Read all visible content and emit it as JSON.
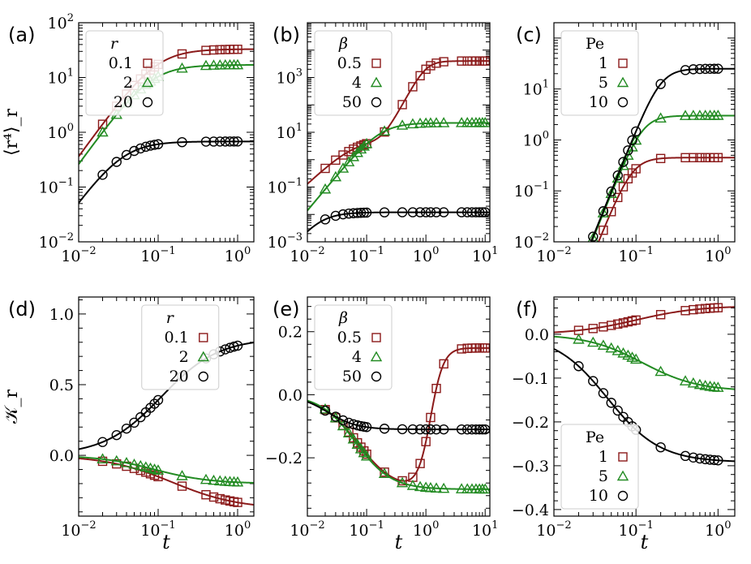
{
  "colors": {
    "red": "#8b1a1a",
    "green": "#228b22",
    "black": "#000000",
    "legend_edge": "#cccccc"
  },
  "chart_data": [
    {
      "panel": "(a)",
      "type": "line",
      "ylabel": "⟨r⁴⟩_r",
      "xlabel": "",
      "xscale": "log",
      "yscale": "log",
      "xlim": [
        0.01,
        1.6
      ],
      "ylim": [
        0.01,
        100
      ],
      "xticks": [
        0.01,
        0.1,
        1
      ],
      "xtick_labels": [
        {
          "b": "10",
          "e": "−2"
        },
        {
          "b": "10",
          "e": "−1"
        },
        {
          "b": "10",
          "e": "0"
        }
      ],
      "yticks": [
        0.01,
        0.1,
        1,
        10,
        100
      ],
      "ytick_labels": [
        {
          "b": "10",
          "e": "−2"
        },
        {
          "b": "10",
          "e": "−1"
        },
        {
          "b": "10",
          "e": "0"
        },
        {
          "b": "10",
          "e": "1"
        },
        {
          "b": "10",
          "e": "2"
        }
      ],
      "legend": {
        "title": "r",
        "title_style": "italic",
        "position": "upper-left",
        "entries": [
          "0.1",
          "2",
          "20"
        ]
      },
      "series": [
        {
          "name": "0.1",
          "color": "red",
          "marker": "square",
          "form": "sat",
          "A": 33,
          "tau": 0.095,
          "n": 2,
          "m": 1.0
        },
        {
          "name": "2",
          "color": "green",
          "marker": "triangle",
          "form": "sat",
          "A": 17,
          "tau": 0.08,
          "n": 2,
          "m": 1.0
        },
        {
          "name": "20",
          "color": "black",
          "marker": "circle",
          "form": "sat",
          "A": 0.68,
          "tau": 0.035,
          "n": 2,
          "m": 1.0
        }
      ]
    },
    {
      "panel": "(b)",
      "type": "line",
      "ylabel": "",
      "xlabel": "",
      "xscale": "log",
      "yscale": "log",
      "xlim": [
        0.01,
        12
      ],
      "ylim": [
        0.001,
        100000
      ],
      "xticks": [
        0.01,
        0.1,
        1,
        10
      ],
      "xtick_labels": [
        {
          "b": "10",
          "e": "−2"
        },
        {
          "b": "10",
          "e": "−1"
        },
        {
          "b": "10",
          "e": "0"
        },
        {
          "b": "10",
          "e": "1"
        }
      ],
      "yticks": [
        0.001,
        0.1,
        10,
        1000
      ],
      "ytick_labels": [
        {
          "b": "10",
          "e": "−3"
        },
        {
          "b": "10",
          "e": "−1"
        },
        {
          "b": "10",
          "e": "1"
        },
        {
          "b": "10",
          "e": "3"
        }
      ],
      "legend": {
        "title": "β",
        "title_style": "italic",
        "position": "upper-left",
        "entries": [
          "0.5",
          "4",
          "50"
        ]
      },
      "series": [
        {
          "name": "0.5",
          "color": "red",
          "marker": "square",
          "form": "sat2",
          "A": 4000,
          "tau": 0.06,
          "n": 2,
          "m": 1.0,
          "tau2": 1.0,
          "n2": 4
        },
        {
          "name": "4",
          "color": "green",
          "marker": "triangle",
          "form": "sat",
          "A": 22,
          "tau": 0.17,
          "n": 2,
          "m": 1.3
        },
        {
          "name": "50",
          "color": "black",
          "marker": "circle",
          "form": "sat",
          "A": 0.012,
          "tau": 0.014,
          "n": 2,
          "m": 1.5
        }
      ]
    },
    {
      "panel": "(c)",
      "type": "line",
      "ylabel": "",
      "xlabel": "",
      "xscale": "log",
      "yscale": "log",
      "xlim": [
        0.01,
        1.6
      ],
      "ylim": [
        0.01,
        200
      ],
      "xticks": [
        0.01,
        0.1,
        1
      ],
      "xtick_labels": [
        {
          "b": "10",
          "e": "−2"
        },
        {
          "b": "10",
          "e": "−1"
        },
        {
          "b": "10",
          "e": "0"
        }
      ],
      "yticks": [
        0.01,
        0.1,
        1,
        10
      ],
      "ytick_labels": [
        {
          "b": "10",
          "e": "−2"
        },
        {
          "b": "10",
          "e": "−1"
        },
        {
          "b": "10",
          "e": "0"
        },
        {
          "b": "10",
          "e": "1"
        }
      ],
      "legend": {
        "title": "Pe",
        "title_style": "normal",
        "position": "upper-left",
        "entries": [
          "1",
          "5",
          "10"
        ]
      },
      "series": [
        {
          "name": "1",
          "color": "red",
          "marker": "square",
          "form": "sat",
          "A": 0.45,
          "tau": 0.09,
          "n": 4,
          "m": 1.0
        },
        {
          "name": "5",
          "color": "green",
          "marker": "triangle",
          "form": "sat",
          "A": 3.0,
          "tau": 0.12,
          "n": 4,
          "m": 1.0
        },
        {
          "name": "10",
          "color": "black",
          "marker": "circle",
          "form": "sat",
          "A": 25,
          "tau": 0.2,
          "n": 4,
          "m": 1.0
        }
      ]
    },
    {
      "panel": "(d)",
      "type": "line",
      "ylabel": "𝒦_r",
      "xlabel": "t",
      "xscale": "log",
      "yscale": "linear",
      "xlim": [
        0.01,
        1.6
      ],
      "ylim": [
        -0.43,
        1.12
      ],
      "xticks": [
        0.01,
        0.1,
        1
      ],
      "xtick_labels": [
        {
          "b": "10",
          "e": "−2"
        },
        {
          "b": "10",
          "e": "−1"
        },
        {
          "b": "10",
          "e": "0"
        }
      ],
      "yticks": [
        0.0,
        0.5,
        1.0
      ],
      "ytick_labels": [
        {
          "b": "0.0"
        },
        {
          "b": "0.5"
        },
        {
          "b": "1.0"
        }
      ],
      "legend": {
        "title": "r",
        "title_style": "italic",
        "position": "upper-center",
        "entries": [
          "0.1",
          "2",
          "20"
        ]
      },
      "series": [
        {
          "name": "0.1",
          "color": "red",
          "marker": "square",
          "form": "sig",
          "y0": 0.0,
          "y1": -0.38,
          "c": 0.15,
          "w": 0.42
        },
        {
          "name": "2",
          "color": "green",
          "marker": "triangle",
          "form": "sig",
          "y0": 0.0,
          "y1": -0.2,
          "c": 0.09,
          "w": 0.35
        },
        {
          "name": "20",
          "color": "black",
          "marker": "circle",
          "form": "sig",
          "y0": 0.0,
          "y1": 0.83,
          "c": 0.11,
          "w": 0.36
        }
      ]
    },
    {
      "panel": "(e)",
      "type": "line",
      "ylabel": "",
      "xlabel": "t",
      "xscale": "log",
      "yscale": "linear",
      "xlim": [
        0.01,
        12
      ],
      "ylim": [
        -0.385,
        0.31
      ],
      "xticks": [
        0.01,
        0.1,
        1,
        10
      ],
      "xtick_labels": [
        {
          "b": "10",
          "e": "−2"
        },
        {
          "b": "10",
          "e": "−1"
        },
        {
          "b": "10",
          "e": "0"
        },
        {
          "b": "10",
          "e": "1"
        }
      ],
      "yticks": [
        -0.2,
        0.0,
        0.2
      ],
      "ytick_labels": [
        {
          "b": "−0.2"
        },
        {
          "b": "0.0"
        },
        {
          "b": "0.2"
        }
      ],
      "legend": {
        "title": "β",
        "title_style": "italic",
        "position": "upper-left",
        "entries": [
          "0.5",
          "4",
          "50"
        ]
      },
      "series": [
        {
          "name": "0.5",
          "color": "red",
          "marker": "square",
          "form": "sig2",
          "y0": 0.0,
          "y1": -0.305,
          "c": 0.07,
          "w": 0.32,
          "y2": 0.148,
          "c2": 1.2,
          "w2": 0.11
        },
        {
          "name": "4",
          "color": "green",
          "marker": "triangle",
          "form": "sig",
          "y0": 0.0,
          "y1": -0.3,
          "c": 0.065,
          "w": 0.3
        },
        {
          "name": "50",
          "color": "black",
          "marker": "circle",
          "form": "sig",
          "y0": 0.0,
          "y1": -0.11,
          "c": 0.022,
          "w": 0.25
        }
      ]
    },
    {
      "panel": "(f)",
      "type": "line",
      "ylabel": "",
      "xlabel": "t",
      "xscale": "log",
      "yscale": "linear",
      "xlim": [
        0.01,
        1.6
      ],
      "ylim": [
        -0.415,
        0.085
      ],
      "xticks": [
        0.01,
        0.1,
        1
      ],
      "xtick_labels": [
        {
          "b": "10",
          "e": "−2"
        },
        {
          "b": "10",
          "e": "−1"
        },
        {
          "b": "10",
          "e": "0"
        }
      ],
      "yticks": [
        -0.4,
        -0.3,
        -0.2,
        -0.1,
        0.0
      ],
      "ytick_labels": [
        {
          "b": "−0.4"
        },
        {
          "b": "−0.3"
        },
        {
          "b": "−0.2"
        },
        {
          "b": "−0.1"
        },
        {
          "b": "0.0"
        }
      ],
      "legend": {
        "title": "Pe",
        "title_style": "normal",
        "position": "lower-right",
        "entries": [
          "1",
          "5",
          "10"
        ]
      },
      "series": [
        {
          "name": "1",
          "color": "red",
          "marker": "square",
          "form": "sig",
          "y0": 0.0,
          "y1": 0.065,
          "c": 0.1,
          "w": 0.38
        },
        {
          "name": "5",
          "color": "green",
          "marker": "triangle",
          "form": "sig",
          "y0": 0.0,
          "y1": -0.13,
          "c": 0.12,
          "w": 0.34
        },
        {
          "name": "10",
          "color": "black",
          "marker": "circle",
          "form": "sig",
          "y0": 0.0,
          "y1": -0.292,
          "c": 0.045,
          "w": 0.32
        }
      ]
    }
  ],
  "marker_t_values": [
    0.02,
    0.03,
    0.04,
    0.05,
    0.06,
    0.07,
    0.08,
    0.09,
    0.1,
    0.2,
    0.4,
    0.5,
    0.6,
    0.7,
    0.8,
    0.9,
    1.0
  ],
  "marker_t_values_wide": [
    0.02,
    0.03,
    0.04,
    0.05,
    0.06,
    0.07,
    0.08,
    0.09,
    0.1,
    0.2,
    0.4,
    0.6,
    0.8,
    1.0,
    1.2,
    1.5,
    2.0,
    4.0,
    5.0,
    6.0,
    7.0,
    8.0,
    9.0,
    10.0
  ]
}
